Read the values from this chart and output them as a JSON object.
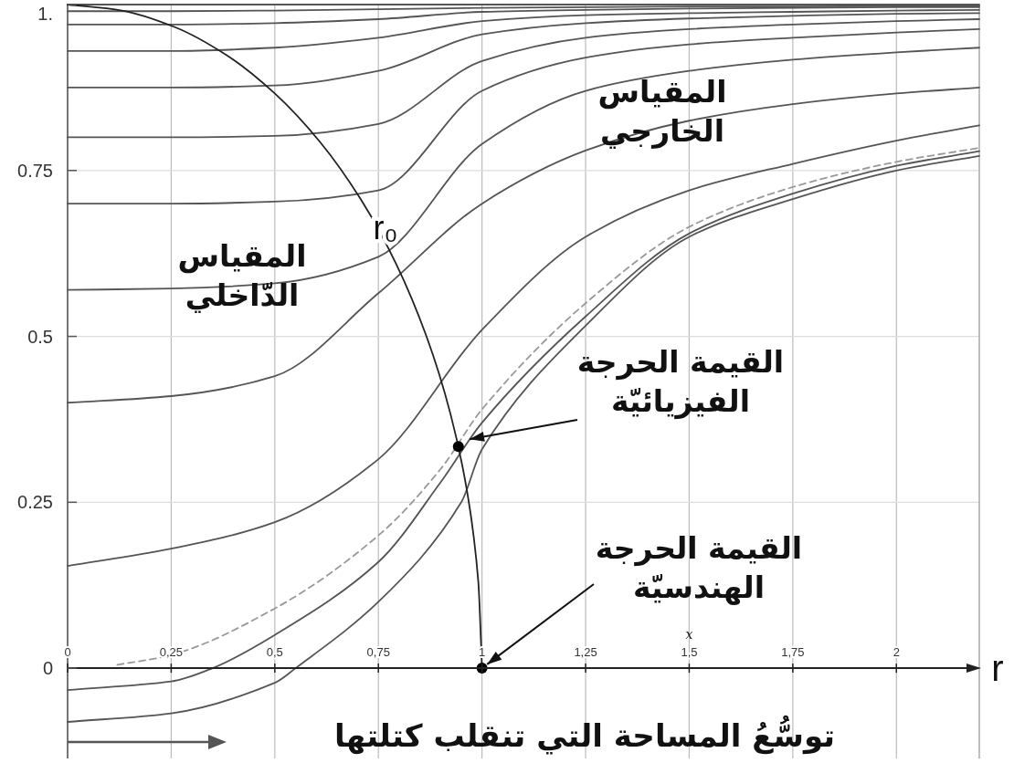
{
  "chart_data": {
    "type": "line",
    "xlim": [
      0,
      2.2
    ],
    "ylim": [
      -0.136,
      1.0
    ],
    "xticks": [
      {
        "value": 0,
        "label": "0"
      },
      {
        "value": 0.25,
        "label": "0,25"
      },
      {
        "value": 0.5,
        "label": "0,5"
      },
      {
        "value": 0.75,
        "label": "0,75"
      },
      {
        "value": 1,
        "label": "1"
      },
      {
        "value": 1.25,
        "label": "1,25"
      },
      {
        "value": 1.5,
        "label": "1,5"
      },
      {
        "value": 1.75,
        "label": "1,75"
      },
      {
        "value": 2,
        "label": "2"
      }
    ],
    "yticks": [
      0,
      0.25,
      0.5,
      0.75,
      {
        "value": 1,
        "label": "1."
      }
    ],
    "xlabel": "r",
    "grid": true,
    "series": [
      {
        "color": "#555555",
        "x": [
          0,
          0.25,
          0.5,
          0.75,
          1.0,
          1.25,
          1.5,
          1.75,
          2.0,
          2.2
        ],
        "values": [
          1,
          1,
          1,
          1,
          1,
          1,
          1,
          1,
          1,
          1
        ]
      },
      {
        "color": "#555555",
        "x": [
          0,
          0.25,
          0.5,
          0.75,
          1.0,
          1.25,
          1.5,
          1.75,
          2.0,
          2.2
        ],
        "values": [
          0.99,
          0.99,
          0.991,
          0.993,
          0.995,
          0.996,
          0.997,
          0.997,
          0.998,
          0.998
        ]
      },
      {
        "color": "#555555",
        "x": [
          0,
          0.25,
          0.5,
          0.75,
          1.0,
          1.25,
          1.5,
          1.75,
          2.0,
          2.2
        ],
        "values": [
          0.97,
          0.97,
          0.972,
          0.978,
          0.989,
          0.992,
          0.994,
          0.995,
          0.996,
          0.996
        ]
      },
      {
        "color": "#555555",
        "x": [
          0,
          0.25,
          0.5,
          0.75,
          1.0,
          1.25,
          1.5,
          1.75,
          2.0,
          2.2
        ],
        "values": [
          0.93,
          0.93,
          0.935,
          0.95,
          0.975,
          0.984,
          0.987,
          0.989,
          0.991,
          0.992
        ]
      },
      {
        "color": "#555555",
        "x": [
          0,
          0.25,
          0.5,
          0.75,
          1.0,
          1.25,
          1.5,
          1.75,
          2.0,
          2.2
        ],
        "values": [
          0.875,
          0.875,
          0.878,
          0.9,
          0.955,
          0.972,
          0.979,
          0.983,
          0.986,
          0.987
        ]
      },
      {
        "color": "#555555",
        "x": [
          0,
          0.25,
          0.5,
          0.75,
          1.0,
          1.25,
          1.5,
          1.75,
          2.0,
          2.2
        ],
        "values": [
          0.8,
          0.8,
          0.802,
          0.82,
          0.915,
          0.95,
          0.963,
          0.97,
          0.975,
          0.978
        ]
      },
      {
        "color": "#555555",
        "x": [
          0,
          0.25,
          0.5,
          0.75,
          1.0,
          1.25,
          1.5,
          1.75,
          2.0,
          2.2
        ],
        "values": [
          0.7,
          0.7,
          0.703,
          0.72,
          0.87,
          0.92,
          0.94,
          0.95,
          0.958,
          0.963
        ]
      },
      {
        "color": "#555555",
        "x": [
          0,
          0.25,
          0.5,
          0.75,
          1.0,
          1.25,
          1.5,
          1.75,
          2.0,
          2.2
        ],
        "values": [
          0.57,
          0.572,
          0.58,
          0.62,
          0.79,
          0.87,
          0.9,
          0.917,
          0.928,
          0.935
        ]
      },
      {
        "color": "#555555",
        "x": [
          0,
          0.25,
          0.5,
          0.75,
          1.0,
          1.25,
          1.5,
          1.75,
          2.0,
          2.2
        ],
        "values": [
          0.4,
          0.41,
          0.44,
          0.565,
          0.7,
          0.78,
          0.825,
          0.85,
          0.866,
          0.875
        ]
      },
      {
        "color": "#555555",
        "x": [
          0,
          0.25,
          0.5,
          0.75,
          1.0,
          1.25,
          1.5,
          1.75,
          2.0,
          2.2
        ],
        "values": [
          0.154,
          0.18,
          0.22,
          0.315,
          0.51,
          0.65,
          0.72,
          0.76,
          0.795,
          0.818
        ]
      },
      {
        "color": "#999999",
        "line_style": "dashed",
        "x": [
          0.12,
          0.25,
          0.5,
          0.75,
          0.9,
          1.0,
          1.25,
          1.5,
          1.75,
          2.0,
          2.2
        ],
        "values": [
          0.005,
          0.02,
          0.09,
          0.2,
          0.3,
          0.39,
          0.55,
          0.665,
          0.725,
          0.763,
          0.784
        ]
      },
      {
        "color": "#555555",
        "x": [
          0,
          0.25,
          0.35,
          0.5,
          0.75,
          0.9,
          1.0,
          1.25,
          1.5,
          1.75,
          2.0,
          2.2
        ],
        "values": [
          -0.033,
          -0.02,
          0,
          0.05,
          0.16,
          0.28,
          0.37,
          0.53,
          0.655,
          0.715,
          0.757,
          0.779
        ]
      },
      {
        "color": "#555555",
        "x": [
          0,
          0.25,
          0.5,
          0.55,
          0.75,
          0.95,
          1.0,
          1.25,
          1.5,
          1.75,
          2.0,
          2.2
        ],
        "values": [
          -0.081,
          -0.068,
          -0.022,
          0,
          0.1,
          0.25,
          0.33,
          0.516,
          0.65,
          0.707,
          0.75,
          0.772
        ]
      },
      {
        "color": "#222222",
        "x": [
          0,
          0.131,
          0.259,
          0.383,
          0.5,
          0.609,
          0.707,
          0.793,
          0.866,
          0.924,
          0.966,
          0.991,
          1
        ],
        "values": [
          1,
          0.991,
          0.966,
          0.924,
          0.866,
          0.793,
          0.707,
          0.609,
          0.5,
          0.383,
          0.259,
          0.131,
          0
        ]
      },
      {
        "type": "scatter",
        "marker": "circle",
        "color": "#000000",
        "x": [
          0.943,
          1
        ],
        "values": [
          0.334,
          0
        ]
      }
    ],
    "annotations": [
      "المقياس\nالخارجي",
      "المقياس\nالدّاخلي",
      {
        "text": "القيمة الحرجة\nالفيزيائيّة",
        "x": 0.97,
        "y": 0.345
      },
      {
        "text": "القيمة الحرجة\nالهندسيّة",
        "x": 1,
        "y": 0
      },
      "r₀",
      "x",
      "توسُّعُ المساحة التي تنقلب كتلتها"
    ]
  }
}
